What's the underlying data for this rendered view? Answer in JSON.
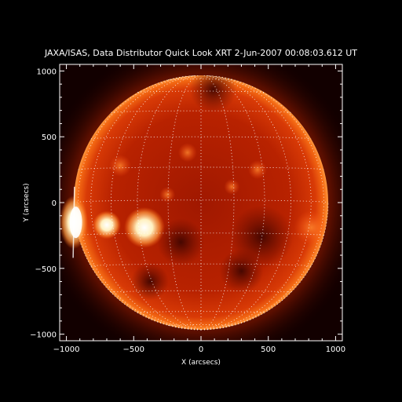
{
  "title": "JAXA/ISAS, Data Distributor Quick Look XRT  2-Jun-2007 00:08:03.612 UT",
  "axes": {
    "xlabel": "X (arcsecs)",
    "ylabel": "Y (arcsecs)",
    "xlim": [
      -1050,
      1050
    ],
    "ylim": [
      -1050,
      1050
    ],
    "xticks": [
      {
        "value": -1000,
        "label": "−1000"
      },
      {
        "value": -500,
        "label": "−500"
      },
      {
        "value": 0,
        "label": "0"
      },
      {
        "value": 500,
        "label": "500"
      },
      {
        "value": 1000,
        "label": "1000"
      }
    ],
    "yticks": [
      {
        "value": 1000,
        "label": "1000"
      },
      {
        "value": 500,
        "label": "500"
      },
      {
        "value": 0,
        "label": "0"
      },
      {
        "value": -500,
        "label": "−500"
      },
      {
        "value": -1000,
        "label": "−1000"
      }
    ]
  },
  "colors": {
    "background": "#000000",
    "disk_core": "#b01c00",
    "disk_limb": "#f06010",
    "corona": "#ff8a30",
    "bright_region": "#fff4d0",
    "grid": "#ffffff"
  }
}
